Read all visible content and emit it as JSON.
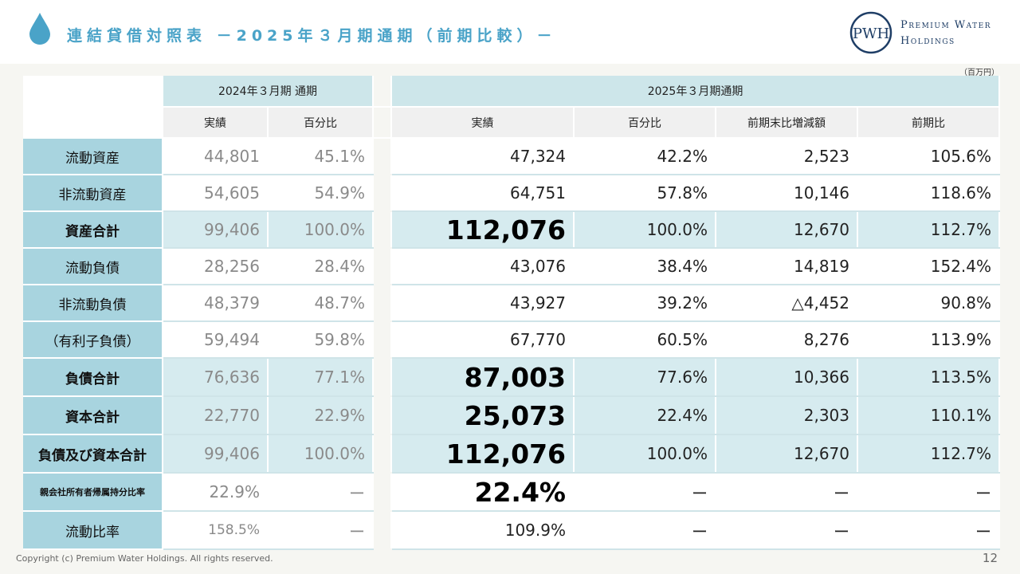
{
  "header": {
    "title": "連結貸借対照表 －2025年３月期通期（前期比較）－",
    "logo_line1": "Premium Water",
    "logo_line2": "Holdings",
    "logo_mark": "PWH"
  },
  "unit_note": "（百万円）",
  "table": {
    "group_prev": "2024年３月期 通期",
    "group_curr": "2025年３月期通期",
    "sub_prev": [
      "実績",
      "百分比"
    ],
    "sub_curr": [
      "実績",
      "百分比",
      "前期末比増減額",
      "前期比"
    ],
    "rows": [
      {
        "label": "流動資産",
        "prev_actual": "44,801",
        "prev_pct": "45.1%",
        "actual": "47,324",
        "pct": "42.2%",
        "change": "2,523",
        "ratio": "105.6%"
      },
      {
        "label": "非流動資産",
        "prev_actual": "54,605",
        "prev_pct": "54.9%",
        "actual": "64,751",
        "pct": "57.8%",
        "change": "10,146",
        "ratio": "118.6%"
      },
      {
        "label": "資産合計",
        "prev_actual": "99,406",
        "prev_pct": "100.0%",
        "actual": "112,076",
        "pct": "100.0%",
        "change": "12,670",
        "ratio": "112.7%"
      },
      {
        "label": "流動負債",
        "prev_actual": "28,256",
        "prev_pct": "28.4%",
        "actual": "43,076",
        "pct": "38.4%",
        "change": "14,819",
        "ratio": "152.4%"
      },
      {
        "label": "非流動負債",
        "prev_actual": "48,379",
        "prev_pct": "48.7%",
        "actual": "43,927",
        "pct": "39.2%",
        "change": "△4,452",
        "ratio": "90.8%"
      },
      {
        "label": "（有利子負債）",
        "prev_actual": "59,494",
        "prev_pct": "59.8%",
        "actual": "67,770",
        "pct": "60.5%",
        "change": "8,276",
        "ratio": "113.9%"
      },
      {
        "label": "負債合計",
        "prev_actual": "76,636",
        "prev_pct": "77.1%",
        "actual": "87,003",
        "pct": "77.6%",
        "change": "10,366",
        "ratio": "113.5%"
      },
      {
        "label": "資本合計",
        "prev_actual": "22,770",
        "prev_pct": "22.9%",
        "actual": "25,073",
        "pct": "22.4%",
        "change": "2,303",
        "ratio": "110.1%"
      },
      {
        "label": "負債及び資本合計",
        "prev_actual": "99,406",
        "prev_pct": "100.0%",
        "actual": "112,076",
        "pct": "100.0%",
        "change": "12,670",
        "ratio": "112.7%"
      },
      {
        "label": "親会社所有者帰属持分比率",
        "prev_actual": "22.9%",
        "prev_pct": "ー",
        "actual": "22.4%",
        "pct": "ー",
        "change": "ー",
        "ratio": "ー"
      },
      {
        "label": "流動比率",
        "prev_actual": "158.5%",
        "prev_pct": "ー",
        "actual": "109.9%",
        "pct": "ー",
        "change": "ー",
        "ratio": "ー"
      }
    ]
  },
  "footer": {
    "copyright": "Copyright (c) Premium Water Holdings. All rights reserved.",
    "page_number": "12"
  },
  "colors": {
    "title": "#4aa3c8",
    "label_bg": "#a8d4df",
    "highlight_bg": "#d6ebef",
    "logo": "#1f3e66"
  }
}
